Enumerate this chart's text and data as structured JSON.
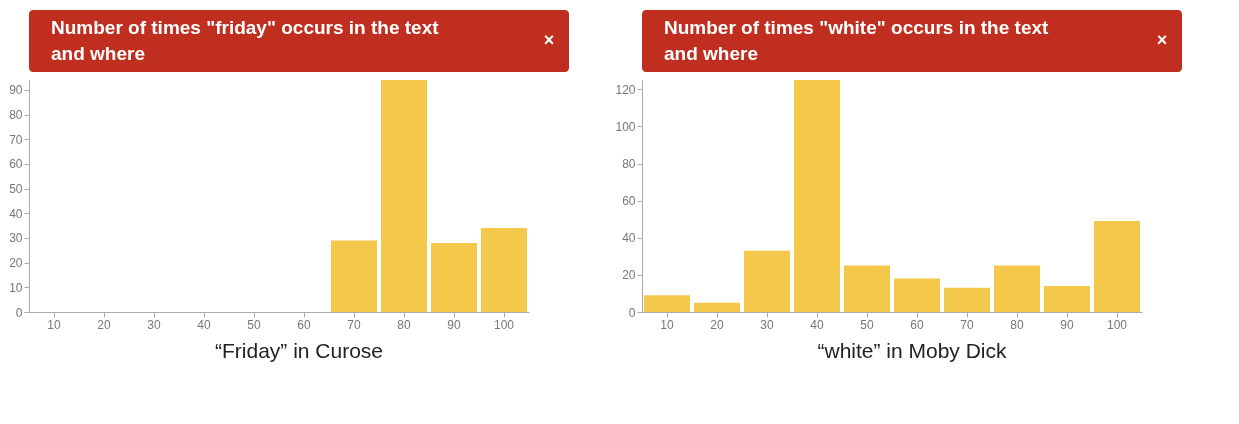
{
  "chart_data": [
    {
      "type": "bar",
      "title": "Number of times \"friday\" occurs in the text and where",
      "categories": [
        "10",
        "20",
        "30",
        "40",
        "50",
        "60",
        "70",
        "80",
        "90",
        "100"
      ],
      "values": [
        0,
        0,
        0,
        0,
        0,
        0,
        29,
        94,
        28,
        34
      ],
      "color": "#f4c84a",
      "ylim": [
        0,
        94
      ],
      "yticks": [
        0,
        10,
        20,
        30,
        40,
        50,
        60,
        70,
        80,
        90
      ],
      "grid": false,
      "annotations": [
        "×",
        "“Friday” in Curose"
      ]
    },
    {
      "type": "bar",
      "title": "Number of times \"white\" occurs in the text and where",
      "categories": [
        "10",
        "20",
        "30",
        "40",
        "50",
        "60",
        "70",
        "80",
        "90",
        "100"
      ],
      "values": [
        9,
        5,
        33,
        125,
        25,
        18,
        13,
        25,
        14,
        49
      ],
      "color": "#f4c84a",
      "ylim": [
        0,
        125
      ],
      "yticks": [
        0,
        20,
        40,
        60,
        80,
        100,
        120
      ],
      "grid": false,
      "annotations": [
        "×",
        "“white” in Moby Dick"
      ]
    }
  ]
}
